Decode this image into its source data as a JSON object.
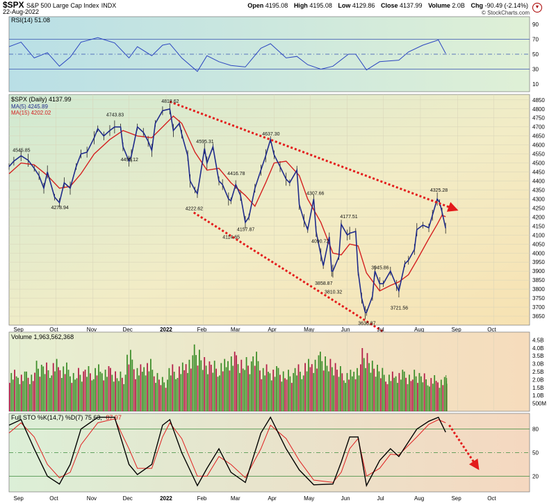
{
  "header": {
    "symbol": "$SPX",
    "name": "S&P 500 Large Cap Index",
    "exchange": "INDX",
    "date": "22-Aug-2022",
    "open_label": "Open",
    "open": "4195.08",
    "high_label": "High",
    "high": "4195.08",
    "low_label": "Low",
    "low": "4129.86",
    "close_label": "Close",
    "close": "4137.99",
    "volume_label": "Volume",
    "volume": "2.0B",
    "chg_label": "Chg",
    "chg": "-90.49 (-2.14%)",
    "credit": "© StockCharts.com"
  },
  "colors": {
    "price": "#1e2a8a",
    "ma5": "#1e2a8a",
    "ma15": "#d42020",
    "up_volume": "#3f8f2c",
    "down_volume": "#b4204a",
    "trendline": "#e31b1b",
    "k_line": "#000000",
    "d_line": "#e02020"
  },
  "rsi_panel": {
    "label": "RSI(14) 51.08",
    "levels": [
      "90",
      "70",
      "50",
      "30",
      "10"
    ]
  },
  "price_panel": {
    "label_price": "$SPX (Daily) 4137.99",
    "label_ma5": "MA(5) 4245.89",
    "label_ma15": "MA(15) 4202.02",
    "y_ticks": [
      "4850",
      "4800",
      "4750",
      "4700",
      "4650",
      "4600",
      "4550",
      "4500",
      "4450",
      "4400",
      "4350",
      "4300",
      "4250",
      "4200",
      "4150",
      "4100",
      "4050",
      "4000",
      "3950",
      "3900",
      "3850",
      "3800",
      "3750",
      "3700",
      "3650"
    ]
  },
  "volume_panel": {
    "label": "Volume 1,963,562,368",
    "y_ticks": [
      "4.5B",
      "4.0B",
      "3.5B",
      "3.0B",
      "2.5B",
      "2.0B",
      "1.5B",
      "1.0B",
      "500M"
    ]
  },
  "sto_panel": {
    "label_main": "Full STO %K(14,7) %D(7) 75.63,",
    "label_d": "87.97",
    "levels": [
      "80",
      "50",
      "20"
    ]
  },
  "x_axis": {
    "months": [
      "Sep",
      "Oct",
      "Nov",
      "Dec",
      "2022",
      "Feb",
      "Mar",
      "Apr",
      "May",
      "Jun",
      "Jul",
      "Aug",
      "Sep",
      "Oct"
    ]
  },
  "chart_data": {
    "type": "line",
    "title": "$SPX S&P 500 Large Cap Index INDX",
    "annotations": [
      {
        "label": "4545.85",
        "date": "2021-09-02",
        "value": 4545.85
      },
      {
        "label": "4278.94",
        "date": "2021-10-04",
        "value": 4278.94
      },
      {
        "label": "4743.83",
        "date": "2021-11-19",
        "value": 4743.83
      },
      {
        "label": "4495.12",
        "date": "2021-12-01",
        "value": 4495.12
      },
      {
        "label": "4818.62",
        "date": "2022-01-04",
        "value": 4818.62
      },
      {
        "label": "4222.62",
        "date": "2022-01-24",
        "value": 4222.62
      },
      {
        "label": "4595.31",
        "date": "2022-02-02",
        "value": 4595.31
      },
      {
        "label": "4416.78",
        "date": "2022-02-28",
        "value": 4416.78
      },
      {
        "label": "4114.65",
        "date": "2022-02-24",
        "value": 4114.65
      },
      {
        "label": "4157.87",
        "date": "2022-03-08",
        "value": 4157.87
      },
      {
        "label": "4637.30",
        "date": "2022-03-29",
        "value": 4637.3
      },
      {
        "label": "4307.66",
        "date": "2022-05-05",
        "value": 4307.66
      },
      {
        "label": "4090.72",
        "date": "2022-05-09",
        "value": 4090.72
      },
      {
        "label": "3858.87",
        "date": "2022-05-12",
        "value": 3858.87
      },
      {
        "label": "3810.32",
        "date": "2022-05-20",
        "value": 3810.32
      },
      {
        "label": "4177.51",
        "date": "2022-06-02",
        "value": 4177.51
      },
      {
        "label": "3636.87",
        "date": "2022-06-17",
        "value": 3636.87
      },
      {
        "label": "3945.86",
        "date": "2022-06-28",
        "value": 3945.86
      },
      {
        "label": "3721.56",
        "date": "2022-07-14",
        "value": 3721.56
      },
      {
        "label": "4325.28",
        "date": "2022-08-16",
        "value": 4325.28
      }
    ],
    "trendlines": [
      {
        "from": [
          "2022-01-04",
          4840
        ],
        "to": [
          "2022-08-31",
          4240
        ]
      },
      {
        "from": [
          "2022-01-24",
          4225
        ],
        "to": [
          "2022-08-28",
          3320
        ]
      }
    ],
    "close_path": [
      [
        "2021-08-23",
        4480
      ],
      [
        "2021-08-27",
        4510
      ],
      [
        "2021-09-02",
        4540
      ],
      [
        "2021-09-08",
        4515
      ],
      [
        "2021-09-13",
        4470
      ],
      [
        "2021-09-17",
        4430
      ],
      [
        "2021-09-21",
        4360
      ],
      [
        "2021-09-24",
        4450
      ],
      [
        "2021-09-30",
        4310
      ],
      [
        "2021-10-04",
        4280
      ],
      [
        "2021-10-08",
        4390
      ],
      [
        "2021-10-13",
        4360
      ],
      [
        "2021-10-18",
        4480
      ],
      [
        "2021-10-22",
        4550
      ],
      [
        "2021-10-27",
        4560
      ],
      [
        "2021-11-02",
        4640
      ],
      [
        "2021-11-05",
        4690
      ],
      [
        "2021-11-10",
        4650
      ],
      [
        "2021-11-15",
        4680
      ],
      [
        "2021-11-19",
        4700
      ],
      [
        "2021-11-24",
        4700
      ],
      [
        "2021-11-26",
        4590
      ],
      [
        "2021-12-01",
        4510
      ],
      [
        "2021-12-03",
        4540
      ],
      [
        "2021-12-08",
        4700
      ],
      [
        "2021-12-13",
        4670
      ],
      [
        "2021-12-17",
        4620
      ],
      [
        "2021-12-20",
        4570
      ],
      [
        "2021-12-23",
        4720
      ],
      [
        "2021-12-29",
        4790
      ],
      [
        "2022-01-04",
        4800
      ],
      [
        "2022-01-07",
        4680
      ],
      [
        "2022-01-12",
        4720
      ],
      [
        "2022-01-14",
        4660
      ],
      [
        "2022-01-19",
        4540
      ],
      [
        "2022-01-21",
        4400
      ],
      [
        "2022-01-25",
        4350
      ],
      [
        "2022-01-27",
        4330
      ],
      [
        "2022-02-02",
        4580
      ],
      [
        "2022-02-04",
        4500
      ],
      [
        "2022-02-09",
        4590
      ],
      [
        "2022-02-14",
        4400
      ],
      [
        "2022-02-17",
        4380
      ],
      [
        "2022-02-22",
        4300
      ],
      [
        "2022-02-24",
        4290
      ],
      [
        "2022-02-28",
        4380
      ],
      [
        "2022-03-04",
        4320
      ],
      [
        "2022-03-08",
        4170
      ],
      [
        "2022-03-11",
        4200
      ],
      [
        "2022-03-16",
        4360
      ],
      [
        "2022-03-21",
        4460
      ],
      [
        "2022-03-25",
        4540
      ],
      [
        "2022-03-29",
        4630
      ],
      [
        "2022-04-01",
        4545
      ],
      [
        "2022-04-06",
        4480
      ],
      [
        "2022-04-11",
        4410
      ],
      [
        "2022-04-14",
        4390
      ],
      [
        "2022-04-20",
        4460
      ],
      [
        "2022-04-22",
        4270
      ],
      [
        "2022-04-26",
        4180
      ],
      [
        "2022-04-29",
        4130
      ],
      [
        "2022-05-04",
        4300
      ],
      [
        "2022-05-06",
        4120
      ],
      [
        "2022-05-10",
        3990
      ],
      [
        "2022-05-12",
        3930
      ],
      [
        "2022-05-17",
        4090
      ],
      [
        "2022-05-19",
        3900
      ],
      [
        "2022-05-20",
        3900
      ],
      [
        "2022-05-25",
        3980
      ],
      [
        "2022-05-27",
        4160
      ],
      [
        "2022-06-01",
        4100
      ],
      [
        "2022-06-03",
        4110
      ],
      [
        "2022-06-08",
        4120
      ],
      [
        "2022-06-10",
        3900
      ],
      [
        "2022-06-13",
        3750
      ],
      [
        "2022-06-16",
        3670
      ],
      [
        "2022-06-17",
        3670
      ],
      [
        "2022-06-22",
        3760
      ],
      [
        "2022-06-24",
        3900
      ],
      [
        "2022-06-28",
        3830
      ],
      [
        "2022-07-01",
        3830
      ],
      [
        "2022-07-07",
        3900
      ],
      [
        "2022-07-12",
        3820
      ],
      [
        "2022-07-14",
        3790
      ],
      [
        "2022-07-19",
        3940
      ],
      [
        "2022-07-22",
        3960
      ],
      [
        "2022-07-27",
        4020
      ],
      [
        "2022-07-29",
        4130
      ],
      [
        "2022-08-03",
        4155
      ],
      [
        "2022-08-08",
        4140
      ],
      [
        "2022-08-11",
        4210
      ],
      [
        "2022-08-15",
        4300
      ],
      [
        "2022-08-17",
        4280
      ],
      [
        "2022-08-19",
        4228
      ],
      [
        "2022-08-22",
        4138
      ]
    ],
    "ma15_path": [
      [
        "2021-08-23",
        4440
      ],
      [
        "2021-09-02",
        4500
      ],
      [
        "2021-09-13",
        4490
      ],
      [
        "2021-09-24",
        4430
      ],
      [
        "2021-10-04",
        4360
      ],
      [
        "2021-10-13",
        4370
      ],
      [
        "2021-10-22",
        4440
      ],
      [
        "2021-11-02",
        4550
      ],
      [
        "2021-11-15",
        4630
      ],
      [
        "2021-11-26",
        4680
      ],
      [
        "2021-12-08",
        4650
      ],
      [
        "2021-12-20",
        4640
      ],
      [
        "2021-12-29",
        4700
      ],
      [
        "2022-01-07",
        4760
      ],
      [
        "2022-01-14",
        4720
      ],
      [
        "2022-01-25",
        4560
      ],
      [
        "2022-02-04",
        4460
      ],
      [
        "2022-02-14",
        4470
      ],
      [
        "2022-02-24",
        4390
      ],
      [
        "2022-03-08",
        4320
      ],
      [
        "2022-03-16",
        4260
      ],
      [
        "2022-03-25",
        4390
      ],
      [
        "2022-04-01",
        4500
      ],
      [
        "2022-04-11",
        4510
      ],
      [
        "2022-04-22",
        4430
      ],
      [
        "2022-04-29",
        4300
      ],
      [
        "2022-05-10",
        4170
      ],
      [
        "2022-05-20",
        4000
      ],
      [
        "2022-05-27",
        3990
      ],
      [
        "2022-06-03",
        4050
      ],
      [
        "2022-06-10",
        4040
      ],
      [
        "2022-06-17",
        3890
      ],
      [
        "2022-06-28",
        3790
      ],
      [
        "2022-07-07",
        3820
      ],
      [
        "2022-07-14",
        3840
      ],
      [
        "2022-07-22",
        3880
      ],
      [
        "2022-07-29",
        3960
      ],
      [
        "2022-08-08",
        4080
      ],
      [
        "2022-08-15",
        4160
      ],
      [
        "2022-08-19",
        4210
      ],
      [
        "2022-08-22",
        4202
      ]
    ],
    "rsi_path": [
      [
        "2021-08-23",
        60
      ],
      [
        "2021-09-02",
        66
      ],
      [
        "2021-09-13",
        45
      ],
      [
        "2021-09-24",
        52
      ],
      [
        "2021-10-04",
        34
      ],
      [
        "2021-10-13",
        46
      ],
      [
        "2021-10-22",
        66
      ],
      [
        "2021-11-05",
        72
      ],
      [
        "2021-11-19",
        65
      ],
      [
        "2021-12-01",
        45
      ],
      [
        "2021-12-08",
        60
      ],
      [
        "2021-12-20",
        48
      ],
      [
        "2021-12-29",
        62
      ],
      [
        "2022-01-04",
        64
      ],
      [
        "2022-01-14",
        45
      ],
      [
        "2022-01-27",
        27
      ],
      [
        "2022-02-04",
        48
      ],
      [
        "2022-02-14",
        40
      ],
      [
        "2022-02-24",
        35
      ],
      [
        "2022-03-08",
        33
      ],
      [
        "2022-03-21",
        58
      ],
      [
        "2022-03-29",
        64
      ],
      [
        "2022-04-11",
        45
      ],
      [
        "2022-04-20",
        47
      ],
      [
        "2022-04-29",
        36
      ],
      [
        "2022-05-10",
        30
      ],
      [
        "2022-05-20",
        34
      ],
      [
        "2022-06-02",
        50
      ],
      [
        "2022-06-08",
        50
      ],
      [
        "2022-06-17",
        29
      ],
      [
        "2022-06-28",
        40
      ],
      [
        "2022-07-14",
        42
      ],
      [
        "2022-07-22",
        53
      ],
      [
        "2022-08-03",
        62
      ],
      [
        "2022-08-16",
        69
      ],
      [
        "2022-08-22",
        51
      ]
    ],
    "sto_k_path": [
      [
        "2021-08-23",
        85
      ],
      [
        "2021-09-02",
        92
      ],
      [
        "2021-09-13",
        55
      ],
      [
        "2021-09-24",
        20
      ],
      [
        "2021-10-04",
        10
      ],
      [
        "2021-10-13",
        35
      ],
      [
        "2021-10-22",
        80
      ],
      [
        "2021-11-05",
        95
      ],
      [
        "2021-11-19",
        95
      ],
      [
        "2021-12-01",
        35
      ],
      [
        "2021-12-08",
        22
      ],
      [
        "2021-12-20",
        35
      ],
      [
        "2021-12-29",
        85
      ],
      [
        "2022-01-04",
        92
      ],
      [
        "2022-01-14",
        50
      ],
      [
        "2022-01-27",
        8
      ],
      [
        "2022-02-04",
        30
      ],
      [
        "2022-02-14",
        55
      ],
      [
        "2022-02-24",
        25
      ],
      [
        "2022-03-08",
        12
      ],
      [
        "2022-03-21",
        75
      ],
      [
        "2022-03-29",
        95
      ],
      [
        "2022-04-11",
        55
      ],
      [
        "2022-04-22",
        28
      ],
      [
        "2022-05-04",
        9
      ],
      [
        "2022-05-20",
        10
      ],
      [
        "2022-05-27",
        38
      ],
      [
        "2022-06-03",
        70
      ],
      [
        "2022-06-10",
        70
      ],
      [
        "2022-06-17",
        8
      ],
      [
        "2022-06-28",
        40
      ],
      [
        "2022-07-07",
        55
      ],
      [
        "2022-07-14",
        45
      ],
      [
        "2022-07-29",
        80
      ],
      [
        "2022-08-08",
        90
      ],
      [
        "2022-08-16",
        95
      ],
      [
        "2022-08-22",
        76
      ]
    ],
    "sto_d_path": [
      [
        "2021-08-23",
        75
      ],
      [
        "2021-09-02",
        88
      ],
      [
        "2021-09-13",
        70
      ],
      [
        "2021-09-24",
        35
      ],
      [
        "2021-10-04",
        18
      ],
      [
        "2021-10-13",
        25
      ],
      [
        "2021-10-22",
        60
      ],
      [
        "2021-11-05",
        88
      ],
      [
        "2021-11-19",
        93
      ],
      [
        "2021-12-01",
        55
      ],
      [
        "2021-12-08",
        30
      ],
      [
        "2021-12-20",
        30
      ],
      [
        "2021-12-29",
        70
      ],
      [
        "2022-01-04",
        88
      ],
      [
        "2022-01-14",
        68
      ],
      [
        "2022-01-27",
        20
      ],
      [
        "2022-02-04",
        20
      ],
      [
        "2022-02-14",
        45
      ],
      [
        "2022-02-24",
        35
      ],
      [
        "2022-03-08",
        18
      ],
      [
        "2022-03-21",
        55
      ],
      [
        "2022-03-29",
        85
      ],
      [
        "2022-04-11",
        68
      ],
      [
        "2022-04-22",
        40
      ],
      [
        "2022-05-04",
        15
      ],
      [
        "2022-05-20",
        12
      ],
      [
        "2022-05-27",
        25
      ],
      [
        "2022-06-03",
        55
      ],
      [
        "2022-06-10",
        68
      ],
      [
        "2022-06-17",
        20
      ],
      [
        "2022-06-28",
        30
      ],
      [
        "2022-07-07",
        48
      ],
      [
        "2022-07-14",
        47
      ],
      [
        "2022-07-29",
        70
      ],
      [
        "2022-08-08",
        86
      ],
      [
        "2022-08-16",
        92
      ],
      [
        "2022-08-22",
        88
      ]
    ],
    "volume_weekly": [
      [
        "2021-08-23",
        2.3
      ],
      [
        "2021-08-30",
        2.2
      ],
      [
        "2021-09-06",
        2.2
      ],
      [
        "2021-09-13",
        2.8
      ],
      [
        "2021-09-20",
        2.7
      ],
      [
        "2021-09-27",
        2.9
      ],
      [
        "2021-10-04",
        2.7
      ],
      [
        "2021-10-11",
        2.3
      ],
      [
        "2021-10-18",
        2.4
      ],
      [
        "2021-10-25",
        2.5
      ],
      [
        "2021-11-01",
        2.6
      ],
      [
        "2021-11-08",
        2.5
      ],
      [
        "2021-11-15",
        2.4
      ],
      [
        "2021-11-22",
        2.2
      ],
      [
        "2021-11-29",
        3.4
      ],
      [
        "2021-12-06",
        2.6
      ],
      [
        "2021-12-13",
        2.9
      ],
      [
        "2021-12-20",
        2.3
      ],
      [
        "2021-12-27",
        1.9
      ],
      [
        "2022-01-03",
        2.6
      ],
      [
        "2022-01-10",
        2.7
      ],
      [
        "2022-01-17",
        3.1
      ],
      [
        "2022-01-24",
        3.7
      ],
      [
        "2022-01-31",
        3.0
      ],
      [
        "2022-02-07",
        2.8
      ],
      [
        "2022-02-14",
        2.9
      ],
      [
        "2022-02-21",
        3.3
      ],
      [
        "2022-02-28",
        3.1
      ],
      [
        "2022-03-07",
        3.0
      ],
      [
        "2022-03-14",
        3.3
      ],
      [
        "2022-03-21",
        2.6
      ],
      [
        "2022-03-28",
        2.5
      ],
      [
        "2022-04-04",
        2.4
      ],
      [
        "2022-04-11",
        2.3
      ],
      [
        "2022-04-18",
        2.6
      ],
      [
        "2022-04-25",
        2.9
      ],
      [
        "2022-05-02",
        3.1
      ],
      [
        "2022-05-09",
        3.3
      ],
      [
        "2022-05-16",
        2.9
      ],
      [
        "2022-05-23",
        2.5
      ],
      [
        "2022-05-30",
        2.3
      ],
      [
        "2022-06-06",
        2.6
      ],
      [
        "2022-06-13",
        3.5
      ],
      [
        "2022-06-20",
        2.8
      ],
      [
        "2022-06-27",
        2.4
      ],
      [
        "2022-07-04",
        2.2
      ],
      [
        "2022-07-11",
        2.3
      ],
      [
        "2022-07-18",
        2.2
      ],
      [
        "2022-07-25",
        2.3
      ],
      [
        "2022-08-01",
        2.1
      ],
      [
        "2022-08-08",
        2.0
      ],
      [
        "2022-08-15",
        1.9
      ],
      [
        "2022-08-22",
        2.0
      ]
    ]
  }
}
